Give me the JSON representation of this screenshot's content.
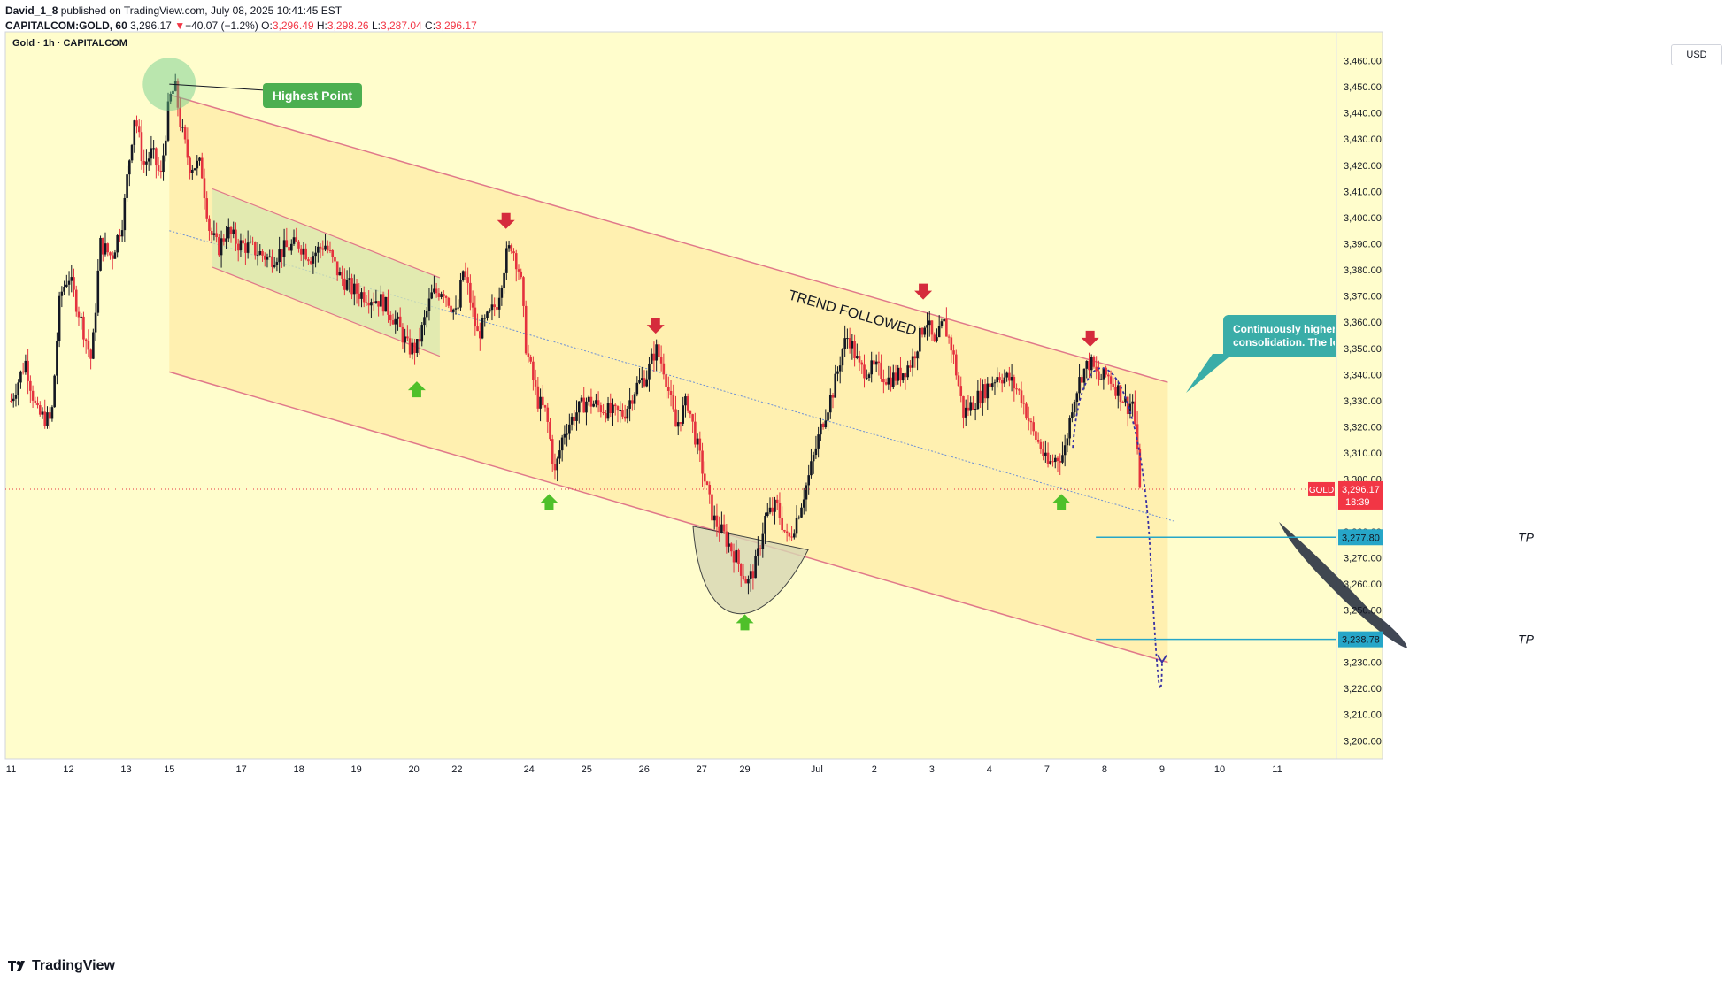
{
  "header": {
    "publisher": "David_1_8",
    "published_text": "published on TradingView.com, July 08, 2025 10:41:45 EST",
    "symbol": "CAPITALCOM:GOLD, 60",
    "last": "3,296.17",
    "change_arrow": "▼",
    "change": "−40.07 (−1.2%)",
    "o_label": "O:",
    "o": "3,296.49",
    "h_label": "H:",
    "h": "3,298.26",
    "l_label": "L:",
    "l": "3,287.04",
    "c_label": "C:",
    "c": "3,296.17"
  },
  "chart_title": "Gold · 1h · CAPITALCOM",
  "currency_button": "USD",
  "footer": {
    "brand": "TradingView",
    "logo_icon": "tradingview-logo-icon"
  },
  "colors": {
    "background": "#fffdcc",
    "channel_fill": "#ffedaa",
    "channel_line": "#e0788a",
    "up_candle": "#131722",
    "down_candle": "#e4323e",
    "sub_channel_fill": "#d8e8b0",
    "tp_line": "#26a6c8",
    "callout": "#3aada8",
    "highest_label": "#4caf50",
    "up_arrow": "#4fc02a",
    "down_arrow": "#d52b3c",
    "price_label": "#f23645"
  },
  "chart_data": {
    "type": "candlestick",
    "y_axis": {
      "range": [
        3193,
        3471
      ],
      "ticks": [
        "3,200.00",
        "3,210.00",
        "3,220.00",
        "3,230.00",
        "3,240.00",
        "3,250.00",
        "3,260.00",
        "3,270.00",
        "3,280.00",
        "3,290.00",
        "3,300.00",
        "3,310.00",
        "3,320.00",
        "3,330.00",
        "3,340.00",
        "3,350.00",
        "3,360.00",
        "3,370.00",
        "3,380.00",
        "3,390.00",
        "3,400.00",
        "3,410.00",
        "3,420.00",
        "3,430.00",
        "3,440.00",
        "3,450.00",
        "3,460.00"
      ],
      "tick_values": [
        3200,
        3210,
        3220,
        3230,
        3240,
        3250,
        3260,
        3270,
        3280,
        3290,
        3300,
        3310,
        3320,
        3330,
        3340,
        3350,
        3360,
        3370,
        3380,
        3390,
        3400,
        3410,
        3420,
        3430,
        3440,
        3450,
        3460
      ]
    },
    "x_axis": {
      "labels": [
        "11",
        "12",
        "13",
        "15",
        "17",
        "18",
        "19",
        "20",
        "22",
        "24",
        "25",
        "26",
        "27",
        "29",
        "Jul",
        "2",
        "3",
        "4",
        "7",
        "8",
        "9",
        "10",
        "11"
      ],
      "positions": [
        0,
        1,
        2,
        2.75,
        4,
        5,
        6,
        7,
        7.75,
        9,
        10,
        11,
        12,
        12.75,
        14,
        15,
        16,
        17,
        18,
        19,
        20,
        21,
        22
      ],
      "x_range": [
        -0.1,
        23
      ]
    },
    "price_path": [
      [
        0,
        3330
      ],
      [
        0.25,
        3345
      ],
      [
        0.45,
        3325
      ],
      [
        0.7,
        3322
      ],
      [
        0.85,
        3370
      ],
      [
        1.0,
        3378
      ],
      [
        1.2,
        3362
      ],
      [
        1.4,
        3345
      ],
      [
        1.55,
        3390
      ],
      [
        1.75,
        3385
      ],
      [
        1.95,
        3400
      ],
      [
        2.0,
        3412
      ],
      [
        2.15,
        3440
      ],
      [
        2.3,
        3420
      ],
      [
        2.45,
        3425
      ],
      [
        2.6,
        3415
      ],
      [
        2.75,
        3445
      ],
      [
        2.85,
        3450
      ],
      [
        2.95,
        3435
      ],
      [
        3.1,
        3420
      ],
      [
        3.3,
        3420
      ],
      [
        3.45,
        3395
      ],
      [
        3.6,
        3388
      ],
      [
        3.75,
        3395
      ],
      [
        3.95,
        3390
      ],
      [
        4.2,
        3388
      ],
      [
        4.5,
        3384
      ],
      [
        4.75,
        3388
      ],
      [
        5.0,
        3390
      ],
      [
        5.2,
        3385
      ],
      [
        5.45,
        3390
      ],
      [
        5.7,
        3378
      ],
      [
        5.95,
        3372
      ],
      [
        6.2,
        3370
      ],
      [
        6.45,
        3368
      ],
      [
        6.7,
        3360
      ],
      [
        6.9,
        3350
      ],
      [
        7.05,
        3350
      ],
      [
        7.3,
        3370
      ],
      [
        7.5,
        3373
      ],
      [
        7.75,
        3362
      ],
      [
        7.85,
        3380
      ],
      [
        7.95,
        3372
      ],
      [
        8.1,
        3355
      ],
      [
        8.3,
        3362
      ],
      [
        8.45,
        3368
      ],
      [
        8.6,
        3385
      ],
      [
        8.7,
        3390
      ],
      [
        8.85,
        3378
      ],
      [
        8.95,
        3350
      ],
      [
        9.15,
        3330
      ],
      [
        9.3,
        3325
      ],
      [
        9.45,
        3302
      ],
      [
        9.6,
        3318
      ],
      [
        9.8,
        3325
      ],
      [
        10.0,
        3330
      ],
      [
        10.2,
        3328
      ],
      [
        10.45,
        3325
      ],
      [
        10.65,
        3325
      ],
      [
        10.85,
        3335
      ],
      [
        11.05,
        3340
      ],
      [
        11.2,
        3350
      ],
      [
        11.35,
        3342
      ],
      [
        11.55,
        3320
      ],
      [
        11.75,
        3330
      ],
      [
        11.9,
        3315
      ],
      [
        12.05,
        3300
      ],
      [
        12.2,
        3285
      ],
      [
        12.4,
        3278
      ],
      [
        12.6,
        3270
      ],
      [
        12.8,
        3260
      ],
      [
        12.95,
        3268
      ],
      [
        13.1,
        3285
      ],
      [
        13.3,
        3290
      ],
      [
        13.5,
        3276
      ],
      [
        13.65,
        3285
      ],
      [
        13.85,
        3300
      ],
      [
        14.1,
        3322
      ],
      [
        14.3,
        3335
      ],
      [
        14.45,
        3350
      ],
      [
        14.55,
        3355
      ],
      [
        14.75,
        3342
      ],
      [
        15.05,
        3342
      ],
      [
        15.25,
        3338
      ],
      [
        15.45,
        3340
      ],
      [
        15.65,
        3345
      ],
      [
        15.8,
        3355
      ],
      [
        15.9,
        3362
      ],
      [
        16.05,
        3350
      ],
      [
        16.2,
        3360
      ],
      [
        16.35,
        3350
      ],
      [
        16.55,
        3325
      ],
      [
        16.75,
        3330
      ],
      [
        16.95,
        3335
      ],
      [
        17.15,
        3340
      ],
      [
        17.35,
        3338
      ],
      [
        17.55,
        3332
      ],
      [
        17.75,
        3318
      ],
      [
        17.9,
        3312
      ],
      [
        18.0,
        3305
      ],
      [
        18.15,
        3308
      ],
      [
        18.3,
        3310
      ],
      [
        18.45,
        3330
      ],
      [
        18.6,
        3340
      ],
      [
        18.75,
        3345
      ],
      [
        18.9,
        3338
      ],
      [
        19.05,
        3340
      ],
      [
        19.2,
        3335
      ],
      [
        19.3,
        3332
      ],
      [
        19.4,
        3328
      ],
      [
        19.5,
        3330
      ],
      [
        19.6,
        3300
      ],
      [
        19.65,
        3296
      ]
    ],
    "annotations": {
      "channel": {
        "upper": [
          [
            2.75,
            3447
          ],
          [
            20.1,
            3337
          ]
        ],
        "lower": [
          [
            2.75,
            3341
          ],
          [
            20.1,
            3230
          ]
        ]
      },
      "mid_line": [
        [
          2.75,
          3395
        ],
        [
          20.2,
          3284
        ]
      ],
      "sub_channel": {
        "upper": [
          [
            3.5,
            3411
          ],
          [
            7.45,
            3377
          ]
        ],
        "lower": [
          [
            3.5,
            3381
          ],
          [
            7.45,
            3347
          ]
        ]
      },
      "trend_label": "TREND FOLLOWED",
      "highest_point_label": "Highest Point",
      "callout_text_line1": "Continuously higher levels rejecting with trend positions, while it's area is long",
      "callout_text_line2": "consolidation. The longer we see the selling zone.",
      "tp_levels": [
        {
          "label": "TP",
          "value": 3277.8,
          "value_text": "3,277.80"
        },
        {
          "label": "TP",
          "value": 3238.78,
          "value_text": "3,238.78"
        }
      ],
      "last_price": {
        "symbol": "GOLD",
        "value": 3296.17,
        "value_text": "3,296.17",
        "countdown": "18:39"
      },
      "down_arrows": [
        [
          8.6,
          3397
        ],
        [
          11.2,
          3357
        ],
        [
          15.85,
          3370
        ],
        [
          18.75,
          3352
        ]
      ],
      "up_arrows": [
        [
          7.05,
          3336
        ],
        [
          9.35,
          3293
        ],
        [
          12.75,
          3247
        ],
        [
          18.25,
          3293
        ]
      ]
    }
  }
}
